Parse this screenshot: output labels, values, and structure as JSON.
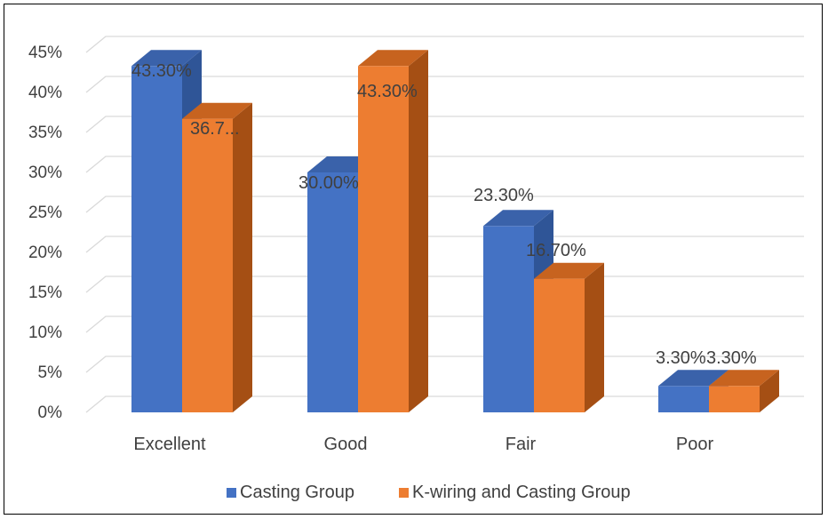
{
  "chart_data": {
    "type": "bar",
    "categories": [
      "Excellent",
      "Good",
      "Fair",
      "Poor"
    ],
    "series": [
      {
        "name": "Casting Group",
        "values": [
          43.3,
          30.0,
          23.3,
          3.3
        ],
        "labels": [
          "43.30%",
          "30.00%",
          "23.30%",
          "3.30%"
        ],
        "color": "#4472C4",
        "side_color": "#2F5597",
        "top_color": "#3A62AA"
      },
      {
        "name": "K-wiring and Casting Group",
        "values": [
          36.7,
          43.3,
          16.7,
          3.3
        ],
        "labels": [
          "36.7...",
          "43.30%",
          "16.70%",
          "3.30%"
        ],
        "color": "#ED7D31",
        "side_color": "#A54F14",
        "top_color": "#C7631F"
      }
    ],
    "yticks": [
      "0%",
      "5%",
      "10%",
      "15%",
      "20%",
      "25%",
      "30%",
      "35%",
      "40%",
      "45%"
    ],
    "ylim": [
      0,
      45
    ],
    "title": "",
    "xlabel": "",
    "ylabel": "",
    "grid": true,
    "legend_position": "bottom",
    "style": "3d-clustered-column"
  }
}
